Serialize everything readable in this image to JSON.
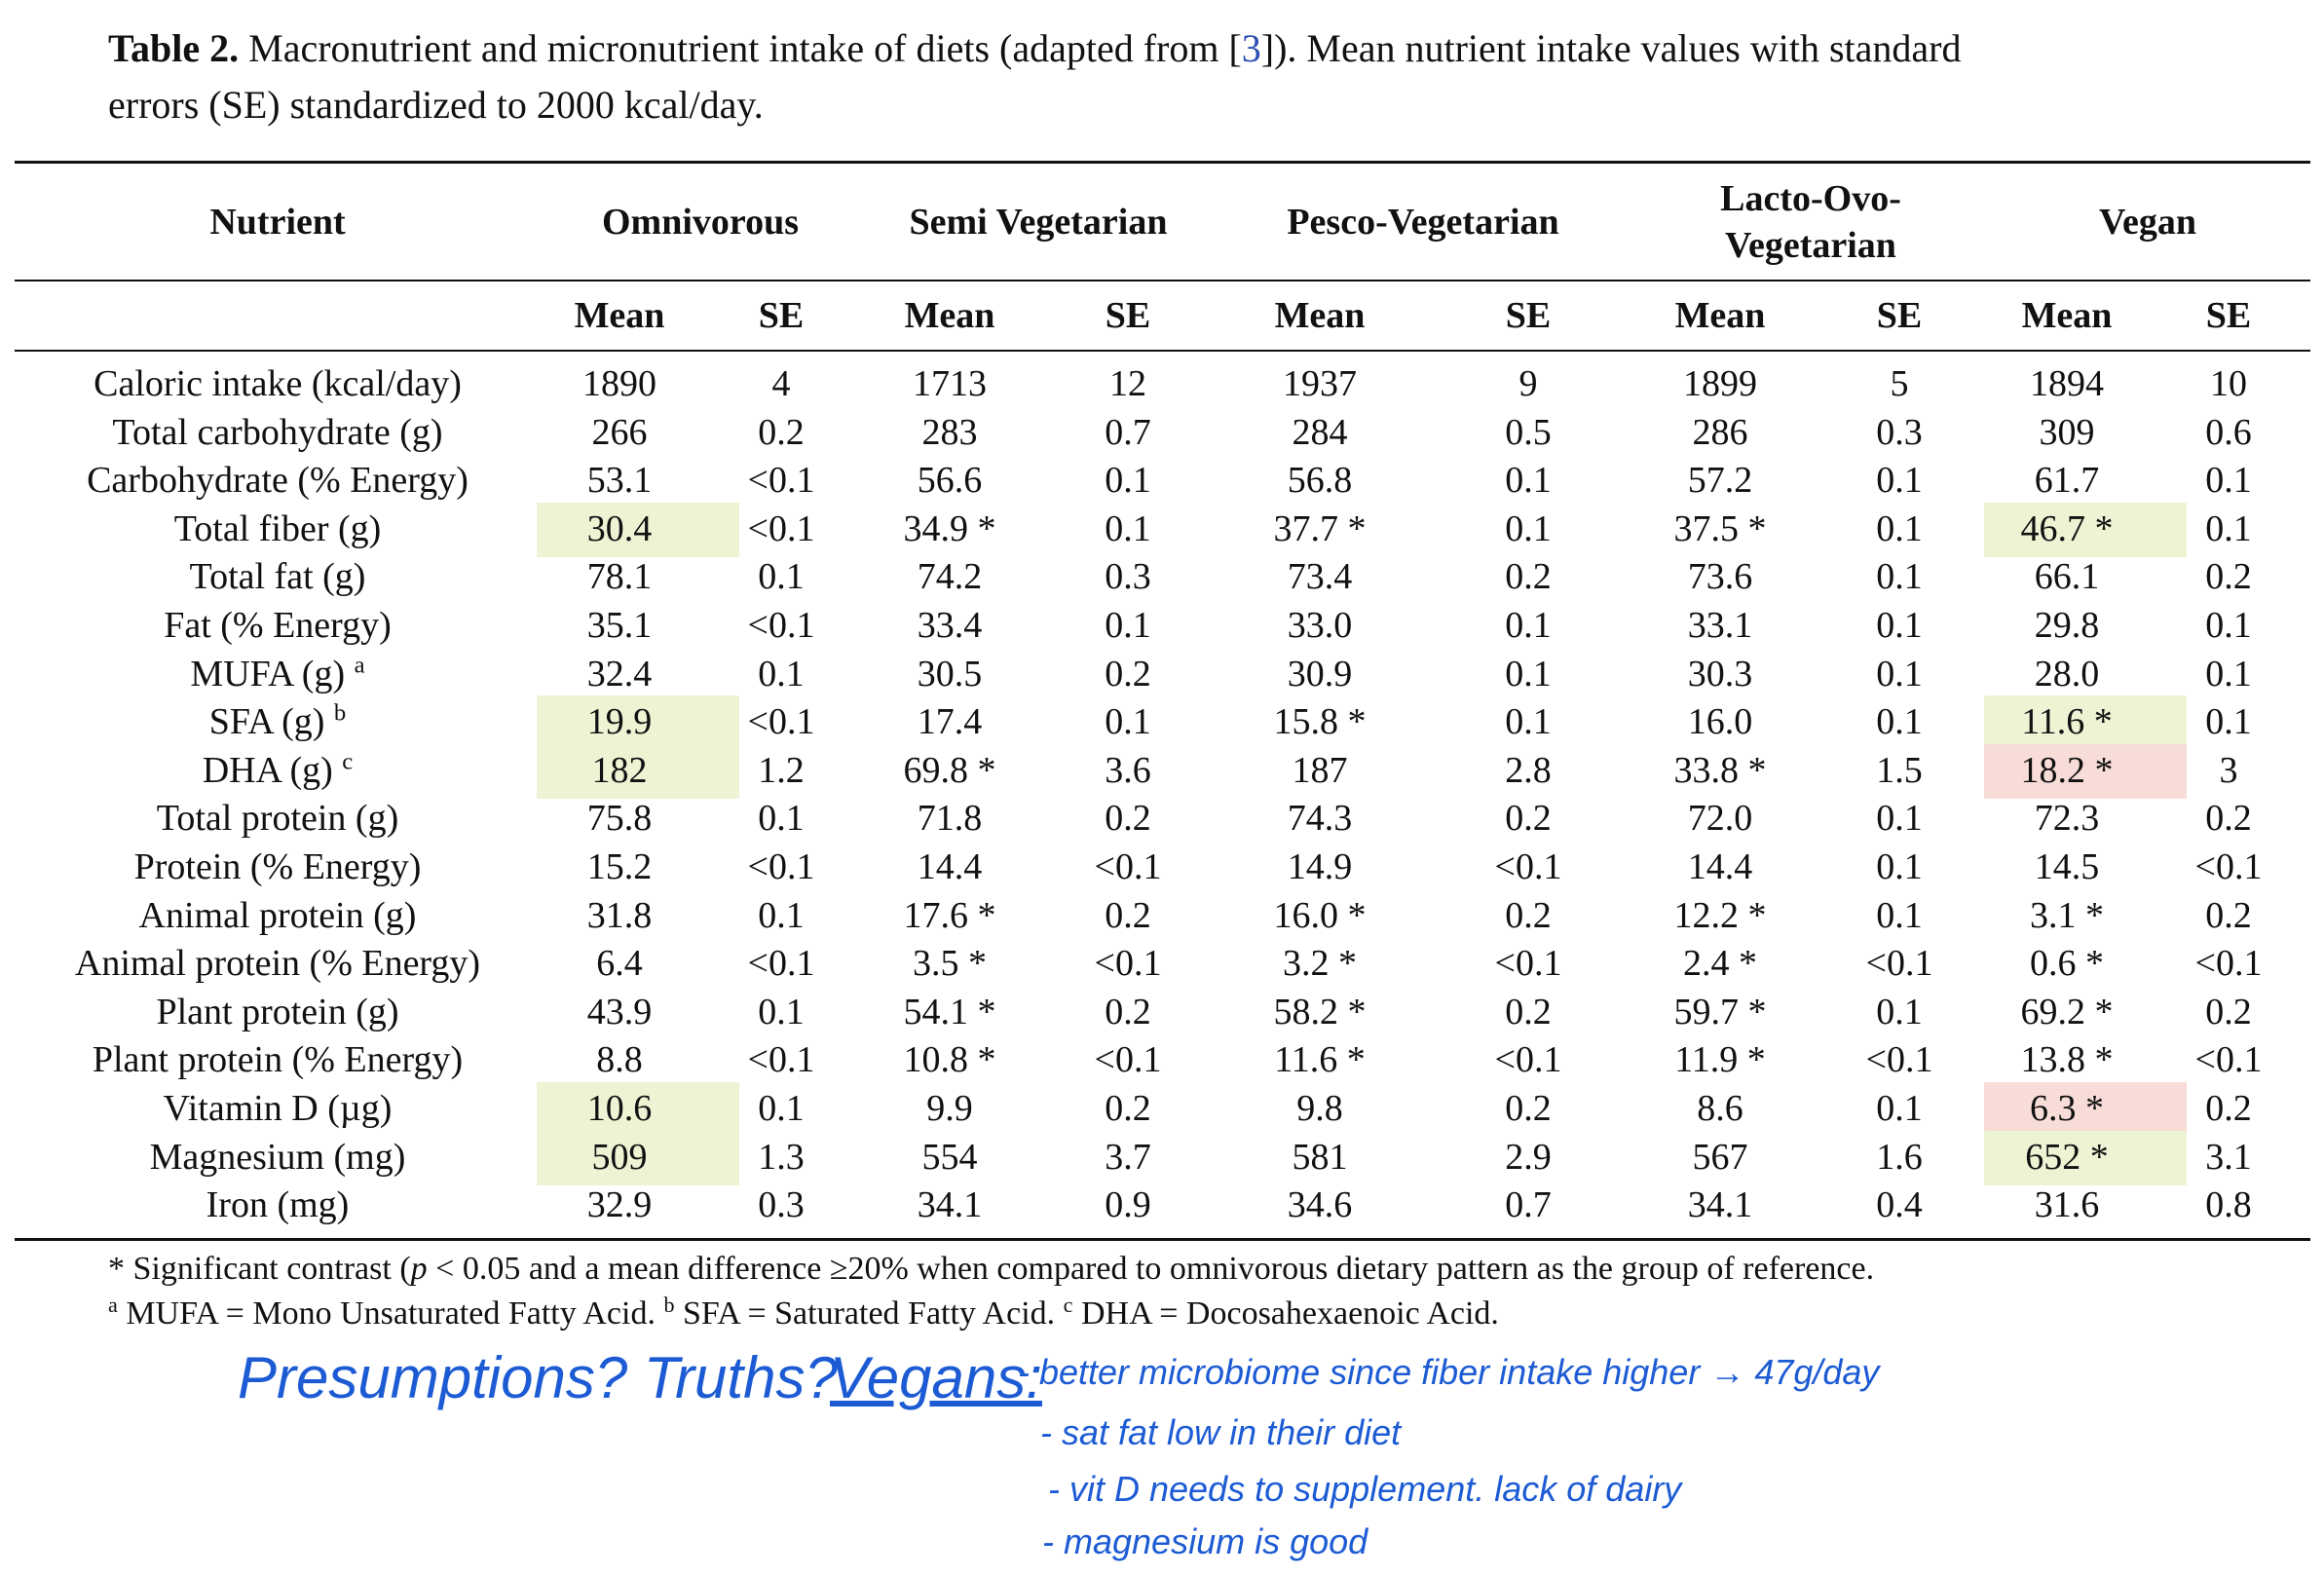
{
  "caption": {
    "label": "Table 2.",
    "text_1": " Macronutrient and micronutrient intake of diets (adapted from [",
    "ref": "3",
    "text_2": "]). Mean nutrient intake values with standard",
    "text_3": "errors (SE) standardized to 2000 kcal/day."
  },
  "table": {
    "nutrient_header": "Nutrient",
    "groups": [
      "Omnivorous",
      "Semi Vegetarian",
      "Pesco-Vegetarian",
      "Lacto-Ovo-Vegetarian",
      "Vegan"
    ],
    "subheaders": [
      "Mean",
      "SE",
      "Mean",
      "SE",
      "Mean",
      "SE",
      "Mean",
      "SE",
      "Mean",
      "SE"
    ],
    "rows": [
      {
        "label": "Caloric intake (kcal/day)",
        "values": [
          "1890",
          "4",
          "1713",
          "12",
          "1937",
          "9",
          "1899",
          "5",
          "1894",
          "10"
        ]
      },
      {
        "label": "Total carbohydrate (g)",
        "values": [
          "266",
          "0.2",
          "283",
          "0.7",
          "284",
          "0.5",
          "286",
          "0.3",
          "309",
          "0.6"
        ]
      },
      {
        "label": "Carbohydrate (% Energy)",
        "values": [
          "53.1",
          "<0.1",
          "56.6",
          "0.1",
          "56.8",
          "0.1",
          "57.2",
          "0.1",
          "61.7",
          "0.1"
        ]
      },
      {
        "label": "Total fiber (g)",
        "values": [
          "30.4",
          "<0.1",
          "34.9 *",
          "0.1",
          "37.7 *",
          "0.1",
          "37.5 *",
          "0.1",
          "46.7 *",
          "0.1"
        ]
      },
      {
        "label": "Total fat (g)",
        "values": [
          "78.1",
          "0.1",
          "74.2",
          "0.3",
          "73.4",
          "0.2",
          "73.6",
          "0.1",
          "66.1",
          "0.2"
        ]
      },
      {
        "label": "Fat (% Energy)",
        "values": [
          "35.1",
          "<0.1",
          "33.4",
          "0.1",
          "33.0",
          "0.1",
          "33.1",
          "0.1",
          "29.8",
          "0.1"
        ]
      },
      {
        "label": "MUFA (g)",
        "note": "a",
        "values": [
          "32.4",
          "0.1",
          "30.5",
          "0.2",
          "30.9",
          "0.1",
          "30.3",
          "0.1",
          "28.0",
          "0.1"
        ]
      },
      {
        "label": "SFA (g)",
        "note": "b",
        "values": [
          "19.9",
          "<0.1",
          "17.4",
          "0.1",
          "15.8 *",
          "0.1",
          "16.0",
          "0.1",
          "11.6 *",
          "0.1"
        ]
      },
      {
        "label": "DHA (g)",
        "note": "c",
        "values": [
          "182",
          "1.2",
          "69.8 *",
          "3.6",
          "187",
          "2.8",
          "33.8 *",
          "1.5",
          "18.2 *",
          "3"
        ]
      },
      {
        "label": "Total protein (g)",
        "values": [
          "75.8",
          "0.1",
          "71.8",
          "0.2",
          "74.3",
          "0.2",
          "72.0",
          "0.1",
          "72.3",
          "0.2"
        ]
      },
      {
        "label": "Protein (% Energy)",
        "values": [
          "15.2",
          "<0.1",
          "14.4",
          "<0.1",
          "14.9",
          "<0.1",
          "14.4",
          "0.1",
          "14.5",
          "<0.1"
        ]
      },
      {
        "label": "Animal protein (g)",
        "values": [
          "31.8",
          "0.1",
          "17.6 *",
          "0.2",
          "16.0 *",
          "0.2",
          "12.2 *",
          "0.1",
          "3.1 *",
          "0.2"
        ]
      },
      {
        "label": "Animal protein (% Energy)",
        "values": [
          "6.4",
          "<0.1",
          "3.5 *",
          "<0.1",
          "3.2 *",
          "<0.1",
          "2.4 *",
          "<0.1",
          "0.6 *",
          "<0.1"
        ]
      },
      {
        "label": "Plant protein (g)",
        "values": [
          "43.9",
          "0.1",
          "54.1 *",
          "0.2",
          "58.2 *",
          "0.2",
          "59.7 *",
          "0.1",
          "69.2 *",
          "0.2"
        ]
      },
      {
        "label": "Plant protein (% Energy)",
        "values": [
          "8.8",
          "<0.1",
          "10.8 *",
          "<0.1",
          "11.6 *",
          "<0.1",
          "11.9 *",
          "<0.1",
          "13.8 *",
          "<0.1"
        ]
      },
      {
        "label": "Vitamin D (µg)",
        "values": [
          "10.6",
          "0.1",
          "9.9",
          "0.2",
          "9.8",
          "0.2",
          "8.6",
          "0.1",
          "6.3 *",
          "0.2"
        ]
      },
      {
        "label": "Magnesium (mg)",
        "values": [
          "509",
          "1.3",
          "554",
          "3.7",
          "581",
          "2.9",
          "567",
          "1.6",
          "652 *",
          "3.1"
        ]
      },
      {
        "label": "Iron (mg)",
        "values": [
          "32.9",
          "0.3",
          "34.1",
          "0.9",
          "34.6",
          "0.7",
          "34.1",
          "0.4",
          "31.6",
          "0.8"
        ]
      }
    ],
    "highlights": [
      {
        "row": 3,
        "col": 0,
        "color": "#eef3d4"
      },
      {
        "row": 3,
        "col": 8,
        "color": "#eef3d4"
      },
      {
        "row": 7,
        "col": 0,
        "color": "#eef3d4"
      },
      {
        "row": 7,
        "col": 8,
        "color": "#eef3d4"
      },
      {
        "row": 8,
        "col": 0,
        "color": "#eef3d4"
      },
      {
        "row": 8,
        "col": 8,
        "color": "#f8dcd8"
      },
      {
        "row": 15,
        "col": 0,
        "color": "#eef3d4"
      },
      {
        "row": 15,
        "col": 8,
        "color": "#f8dcd8"
      },
      {
        "row": 16,
        "col": 0,
        "color": "#eef3d4"
      },
      {
        "row": 16,
        "col": 8,
        "color": "#eef3d4"
      }
    ]
  },
  "footnotes": {
    "significance": {
      "lead": "* Significant contrast (",
      "symbol": "p",
      "rest": " < 0.05 and a mean difference ≥20% when compared to omnivorous dietary pattern as the group of reference."
    },
    "abbreviations": [
      {
        "mark": "a",
        "text": " MUFA = Mono Unsaturated Fatty Acid. "
      },
      {
        "mark": "b",
        "text": " SFA = Saturated Fatty Acid. "
      },
      {
        "mark": "c",
        "text": " DHA = Docosahexaenoic Acid."
      }
    ]
  },
  "handwritten_notes": {
    "question": "Presumptions? Truths?",
    "heading": "Vegans:",
    "points": [
      "- better microbiome since fiber intake higher → 47g/day",
      "- sat fat low in their diet",
      "- vit D needs to supplement. lack of dairy",
      "- magnesium is good"
    ]
  }
}
